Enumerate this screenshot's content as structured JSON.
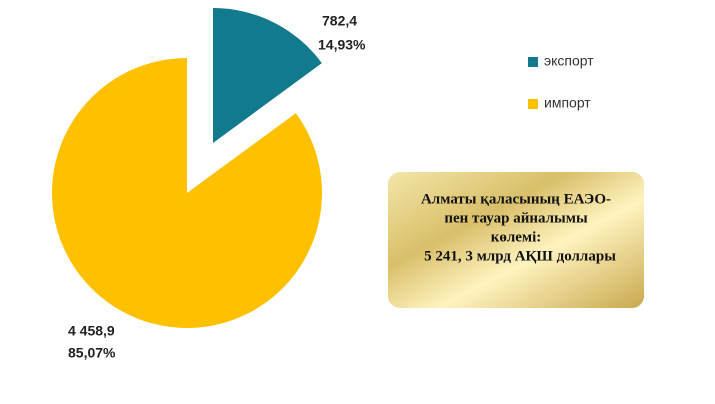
{
  "chart_data": {
    "type": "pie",
    "categories": [
      "экспорт",
      "импорт"
    ],
    "values": [
      782.4,
      4458.9
    ],
    "value_labels": [
      "782,4",
      "4 458,9"
    ],
    "percents": [
      14.93,
      85.07
    ],
    "percent_labels": [
      "14,93%",
      "85,07%"
    ],
    "colors": [
      "#117a8d",
      "#ffc000"
    ],
    "legend": "right",
    "annotation": [
      "Алматы қаласының ЕАЭО-",
      "пен тауар айналымы",
      "көлемі:",
      "5 241, 3 млрд АҚШ доллары"
    ]
  }
}
